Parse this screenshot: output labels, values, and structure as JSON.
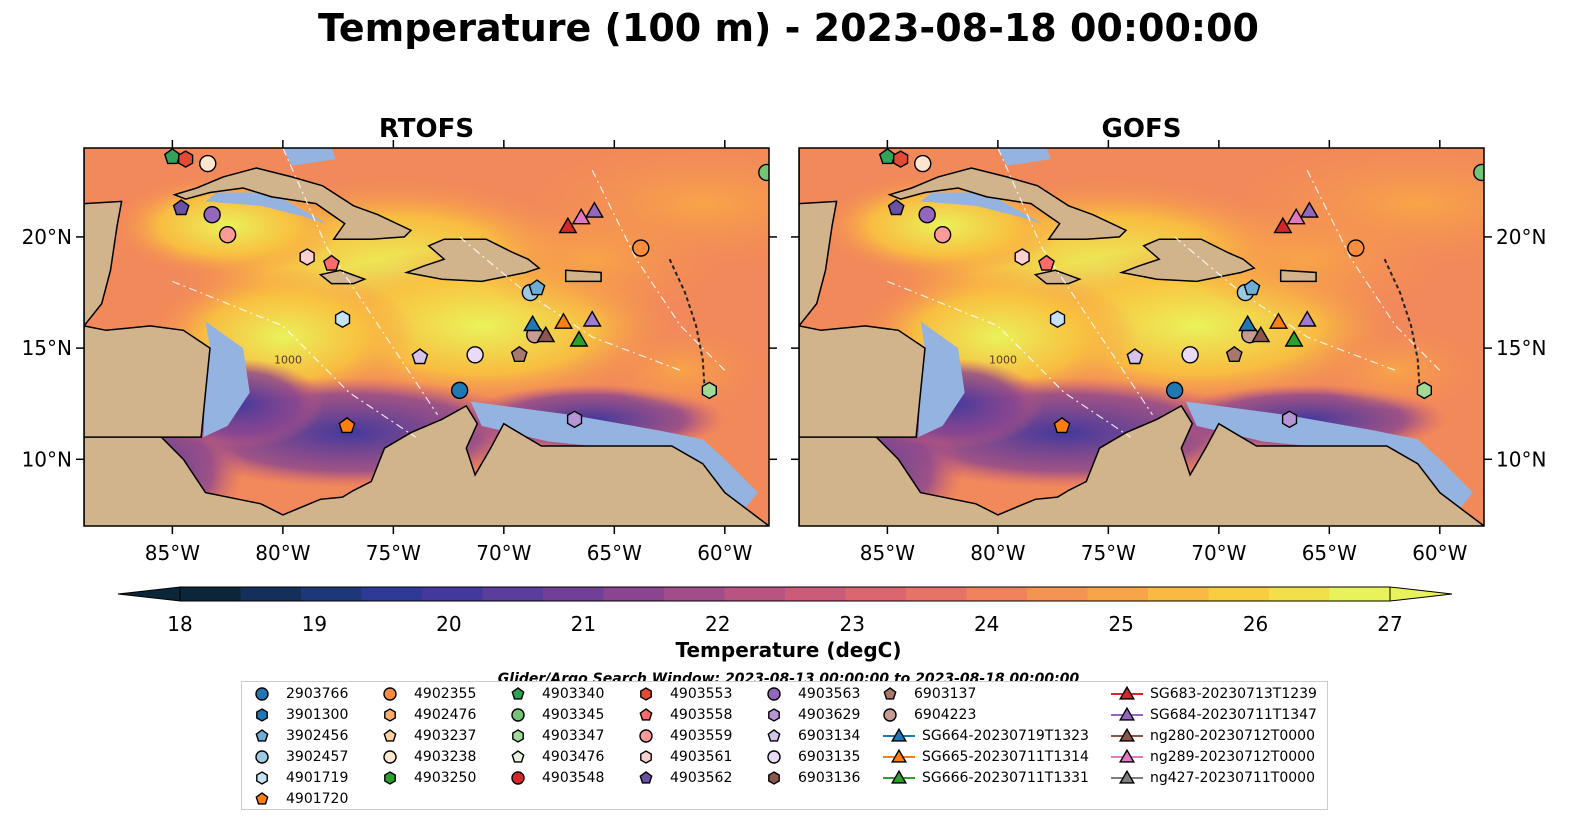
{
  "title": "Temperature (100 m) - 2023-08-18 00:00:00",
  "panels": [
    {
      "title": "RTOFS",
      "y_ticks_side": "left"
    },
    {
      "title": "GOFS",
      "y_ticks_side": "right"
    }
  ],
  "map": {
    "lon_ticks": [
      "85°W",
      "80°W",
      "75°W",
      "70°W",
      "65°W",
      "60°W"
    ],
    "lat_ticks": [
      "20°N",
      "15°N",
      "10°N"
    ],
    "land_color": "#d2b48c",
    "shelf_color": "#95b3e0",
    "deep_ocean_color": "#0b2638",
    "contour_labels": [
      "1000"
    ]
  },
  "colorbar": {
    "label": "Temperature (degC)",
    "ticks": [
      "18",
      "19",
      "20",
      "21",
      "22",
      "23",
      "24",
      "25",
      "26",
      "27"
    ],
    "colors": [
      "#0b2638",
      "#14305a",
      "#1d3778",
      "#2e3a96",
      "#43399c",
      "#5a3d9c",
      "#723f96",
      "#8a4590",
      "#a34c8a",
      "#b85382",
      "#cc5b79",
      "#dc6670",
      "#e77366",
      "#f0825c",
      "#f59351",
      "#f8a548",
      "#f9b942",
      "#f8cd40",
      "#f2e04a",
      "#e8f35b"
    ],
    "extend": "both"
  },
  "search_window": "Glider/Argo Search Window: 2023-08-13 00:00:00 to 2023-08-18 00:00:00",
  "legend": {
    "columns": [
      [
        {
          "label": "2903766",
          "marker": "circle",
          "color": "#1f77b4"
        },
        {
          "label": "3901300",
          "marker": "hexagon",
          "color": "#1f77b4"
        },
        {
          "label": "3902456",
          "marker": "pentagon",
          "color": "#6baed6"
        },
        {
          "label": "3902457",
          "marker": "circle",
          "color": "#9ecae1"
        },
        {
          "label": "4901719",
          "marker": "hexagon",
          "color": "#c6e2f5"
        },
        {
          "label": "4901720",
          "marker": "pentagon",
          "color": "#ff7f0e"
        }
      ],
      [
        {
          "label": "4902355",
          "marker": "circle",
          "color": "#fd8d3c"
        },
        {
          "label": "4902476",
          "marker": "hexagon",
          "color": "#fdae6b"
        },
        {
          "label": "4903237",
          "marker": "pentagon",
          "color": "#fdd0a2"
        },
        {
          "label": "4903238",
          "marker": "circle",
          "color": "#fee6ce"
        },
        {
          "label": "4903250",
          "marker": "hexagon",
          "color": "#2ca02c"
        }
      ],
      [
        {
          "label": "4903340",
          "marker": "pentagon",
          "color": "#31a354"
        },
        {
          "label": "4903345",
          "marker": "circle",
          "color": "#74c476"
        },
        {
          "label": "4903347",
          "marker": "hexagon",
          "color": "#a1d99b"
        },
        {
          "label": "4903476",
          "marker": "pentagon",
          "color": "#e5f5e0"
        },
        {
          "label": "4903548",
          "marker": "circle",
          "color": "#d62728"
        }
      ],
      [
        {
          "label": "4903553",
          "marker": "hexagon",
          "color": "#e34a33"
        },
        {
          "label": "4903558",
          "marker": "pentagon",
          "color": "#fc6c6c"
        },
        {
          "label": "4903559",
          "marker": "circle",
          "color": "#fc9a9a"
        },
        {
          "label": "4903561",
          "marker": "hexagon",
          "color": "#fdd0d0"
        },
        {
          "label": "4903562",
          "marker": "pentagon",
          "color": "#6a51a3"
        }
      ],
      [
        {
          "label": "4903563",
          "marker": "circle",
          "color": "#9467bd"
        },
        {
          "label": "4903629",
          "marker": "hexagon",
          "color": "#b695d6"
        },
        {
          "label": "6903134",
          "marker": "pentagon",
          "color": "#d5c3ec"
        },
        {
          "label": "6903135",
          "marker": "circle",
          "color": "#ead9f7"
        },
        {
          "label": "6903136",
          "marker": "hexagon",
          "color": "#8c564b"
        }
      ],
      [
        {
          "label": "6903137",
          "marker": "pentagon",
          "color": "#a8786d"
        },
        {
          "label": "6904223",
          "marker": "circle",
          "color": "#c49c94"
        },
        {
          "label": "SG664-20230719T1323",
          "marker": "triangle-line",
          "color": "#1f77b4"
        },
        {
          "label": "SG665-20230711T1314",
          "marker": "triangle-line",
          "color": "#ff7f0e"
        },
        {
          "label": "SG666-20230711T1331",
          "marker": "triangle-line",
          "color": "#2ca02c"
        }
      ],
      [
        {
          "label": "SG683-20230713T1239",
          "marker": "triangle-line",
          "color": "#d62728"
        },
        {
          "label": "SG684-20230711T1347",
          "marker": "triangle-line",
          "color": "#9467bd"
        },
        {
          "label": "ng280-20230712T0000",
          "marker": "triangle-line",
          "color": "#8c564b"
        },
        {
          "label": "ng289-20230712T0000",
          "marker": "triangle-line",
          "color": "#e377c2"
        },
        {
          "label": "ng427-20230711T0000",
          "marker": "triangle-line",
          "color": "#7f7f7f"
        }
      ]
    ]
  },
  "observations": [
    {
      "lon": -85.0,
      "lat": 23.6,
      "marker": "pentagon",
      "color": "#31a354"
    },
    {
      "lon": -84.4,
      "lat": 23.5,
      "marker": "hexagon",
      "color": "#e34a33"
    },
    {
      "lon": -83.4,
      "lat": 23.3,
      "marker": "circle",
      "color": "#fee6ce"
    },
    {
      "lon": -84.6,
      "lat": 21.3,
      "marker": "pentagon",
      "color": "#6a51a3"
    },
    {
      "lon": -83.2,
      "lat": 21.0,
      "marker": "circle",
      "color": "#9467bd"
    },
    {
      "lon": -82.5,
      "lat": 20.1,
      "marker": "circle",
      "color": "#fc9a9a"
    },
    {
      "lon": -78.9,
      "lat": 19.1,
      "marker": "hexagon",
      "color": "#fdd0d0"
    },
    {
      "lon": -77.8,
      "lat": 18.8,
      "marker": "pentagon",
      "color": "#fc6c6c"
    },
    {
      "lon": -77.3,
      "lat": 16.3,
      "marker": "hexagon",
      "color": "#c6e2f5"
    },
    {
      "lon": -73.8,
      "lat": 14.6,
      "marker": "pentagon",
      "color": "#d5c3ec"
    },
    {
      "lon": -71.3,
      "lat": 14.7,
      "marker": "circle",
      "color": "#ead9f7"
    },
    {
      "lon": -69.3,
      "lat": 14.7,
      "marker": "pentagon",
      "color": "#a8786d"
    },
    {
      "lon": -72.0,
      "lat": 13.1,
      "marker": "circle",
      "color": "#1f77b4"
    },
    {
      "lon": -77.1,
      "lat": 11.5,
      "marker": "pentagon",
      "color": "#ff7f0e"
    },
    {
      "lon": -68.8,
      "lat": 17.5,
      "marker": "circle",
      "color": "#9ecae1"
    },
    {
      "lon": -68.5,
      "lat": 17.7,
      "marker": "pentagon",
      "color": "#6baed6"
    },
    {
      "lon": -66.8,
      "lat": 11.8,
      "marker": "hexagon",
      "color": "#b695d6"
    },
    {
      "lon": -63.8,
      "lat": 19.5,
      "marker": "circle",
      "color": "#fd8d3c"
    },
    {
      "lon": -60.7,
      "lat": 13.1,
      "marker": "hexagon",
      "color": "#a1d99b"
    },
    {
      "lon": -58.1,
      "lat": 22.9,
      "marker": "circle",
      "color": "#74c476"
    },
    {
      "lon": -68.6,
      "lat": 15.6,
      "marker": "circle",
      "color": "#c49c94"
    },
    {
      "lon": -68.7,
      "lat": 16.1,
      "marker": "triangle",
      "color": "#1f77b4"
    },
    {
      "lon": -67.3,
      "lat": 16.2,
      "marker": "triangle",
      "color": "#ff7f0e"
    },
    {
      "lon": -66.6,
      "lat": 15.4,
      "marker": "triangle",
      "color": "#2ca02c"
    },
    {
      "lon": -67.1,
      "lat": 20.5,
      "marker": "triangle",
      "color": "#d62728"
    },
    {
      "lon": -65.9,
      "lat": 21.2,
      "marker": "triangle",
      "color": "#9467bd"
    },
    {
      "lon": -68.1,
      "lat": 15.6,
      "marker": "triangle",
      "color": "#8c564b"
    },
    {
      "lon": -66.5,
      "lat": 20.9,
      "marker": "triangle",
      "color": "#e377c2"
    },
    {
      "lon": -66.0,
      "lat": 16.3,
      "marker": "triangle",
      "color": "#9c7bd3"
    }
  ]
}
